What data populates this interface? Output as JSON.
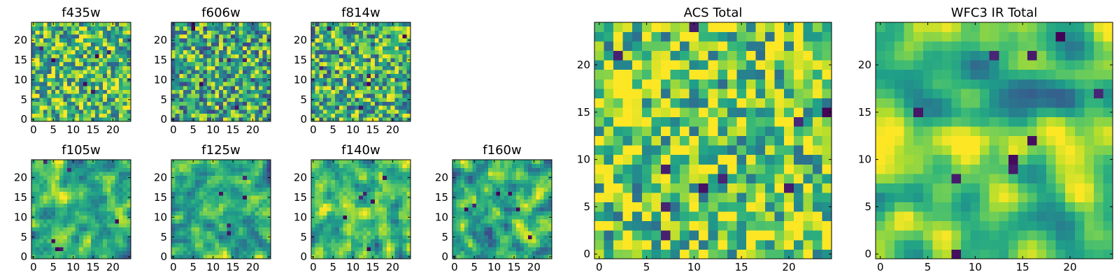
{
  "chart_data": [
    {
      "type": "heatmap",
      "title": "f435w",
      "colormap": "viridis",
      "grid_size": 25,
      "xticks": [
        "0",
        "5",
        "10",
        "15",
        "20"
      ],
      "yticks": [
        "0",
        "5",
        "10",
        "15",
        "20"
      ],
      "xlim": [
        0,
        24
      ],
      "ylim": [
        0,
        24
      ],
      "texture": "fine noise",
      "seed": 11,
      "smooth": 0,
      "bias": 0.15
    },
    {
      "type": "heatmap",
      "title": "f606w",
      "colormap": "viridis",
      "grid_size": 25,
      "xticks": [
        "0",
        "5",
        "10",
        "15",
        "20"
      ],
      "yticks": [
        "0",
        "5",
        "10",
        "15",
        "20"
      ],
      "xlim": [
        0,
        24
      ],
      "ylim": [
        0,
        24
      ],
      "texture": "fine noise",
      "seed": 23,
      "smooth": 0,
      "bias": 0.05
    },
    {
      "type": "heatmap",
      "title": "f814w",
      "colormap": "viridis",
      "grid_size": 25,
      "xticks": [
        "0",
        "5",
        "10",
        "15",
        "20"
      ],
      "yticks": [
        "0",
        "5",
        "10",
        "15",
        "20"
      ],
      "xlim": [
        0,
        24
      ],
      "ylim": [
        0,
        24
      ],
      "texture": "fine noise",
      "seed": 37,
      "smooth": 0,
      "bias": 0.08
    },
    {
      "type": "heatmap",
      "title": "f105w",
      "colormap": "viridis",
      "grid_size": 25,
      "xticks": [
        "0",
        "5",
        "10",
        "15",
        "20"
      ],
      "yticks": [
        "0",
        "5",
        "10",
        "15",
        "20"
      ],
      "xlim": [
        0,
        24
      ],
      "ylim": [
        0,
        24
      ],
      "texture": "smooth blobs",
      "seed": 41,
      "smooth": 1,
      "bias": 0.1
    },
    {
      "type": "heatmap",
      "title": "f125w",
      "colormap": "viridis",
      "grid_size": 25,
      "xticks": [
        "0",
        "5",
        "10",
        "15",
        "20"
      ],
      "yticks": [
        "0",
        "5",
        "10",
        "15",
        "20"
      ],
      "xlim": [
        0,
        24
      ],
      "ylim": [
        0,
        24
      ],
      "texture": "smooth blobs",
      "seed": 53,
      "smooth": 1,
      "bias": 0.05
    },
    {
      "type": "heatmap",
      "title": "f140w",
      "colormap": "viridis",
      "grid_size": 25,
      "xticks": [
        "0",
        "5",
        "10",
        "15",
        "20"
      ],
      "yticks": [
        "0",
        "5",
        "10",
        "15",
        "20"
      ],
      "xlim": [
        0,
        24
      ],
      "ylim": [
        0,
        24
      ],
      "texture": "smooth blobs",
      "seed": 67,
      "smooth": 1,
      "bias": 0.1
    },
    {
      "type": "heatmap",
      "title": "f160w",
      "colormap": "viridis",
      "grid_size": 25,
      "xticks": [
        "0",
        "5",
        "10",
        "15",
        "20"
      ],
      "yticks": [
        "0",
        "5",
        "10",
        "15",
        "20"
      ],
      "xlim": [
        0,
        24
      ],
      "ylim": [
        0,
        24
      ],
      "texture": "smooth blobs",
      "seed": 79,
      "smooth": 1,
      "bias": 0.08
    },
    {
      "type": "heatmap",
      "title": "ACS Total",
      "colormap": "viridis",
      "grid_size": 25,
      "xticks": [
        "0",
        "5",
        "10",
        "15",
        "20"
      ],
      "yticks": [
        "0",
        "5",
        "10",
        "15",
        "20"
      ],
      "xlim": [
        0,
        24
      ],
      "ylim": [
        0,
        24
      ],
      "texture": "fine noise",
      "seed": 83,
      "smooth": 0,
      "bias": 0.2
    },
    {
      "type": "heatmap",
      "title": "WFC3 IR Total",
      "colormap": "viridis",
      "grid_size": 25,
      "xticks": [
        "0",
        "5",
        "10",
        "15",
        "20"
      ],
      "yticks": [
        "0",
        "5",
        "10",
        "15",
        "20"
      ],
      "xlim": [
        0,
        24
      ],
      "ylim": [
        0,
        24
      ],
      "texture": "smooth with bright central band",
      "seed": 97,
      "smooth": 2,
      "bias": 0.15
    }
  ]
}
